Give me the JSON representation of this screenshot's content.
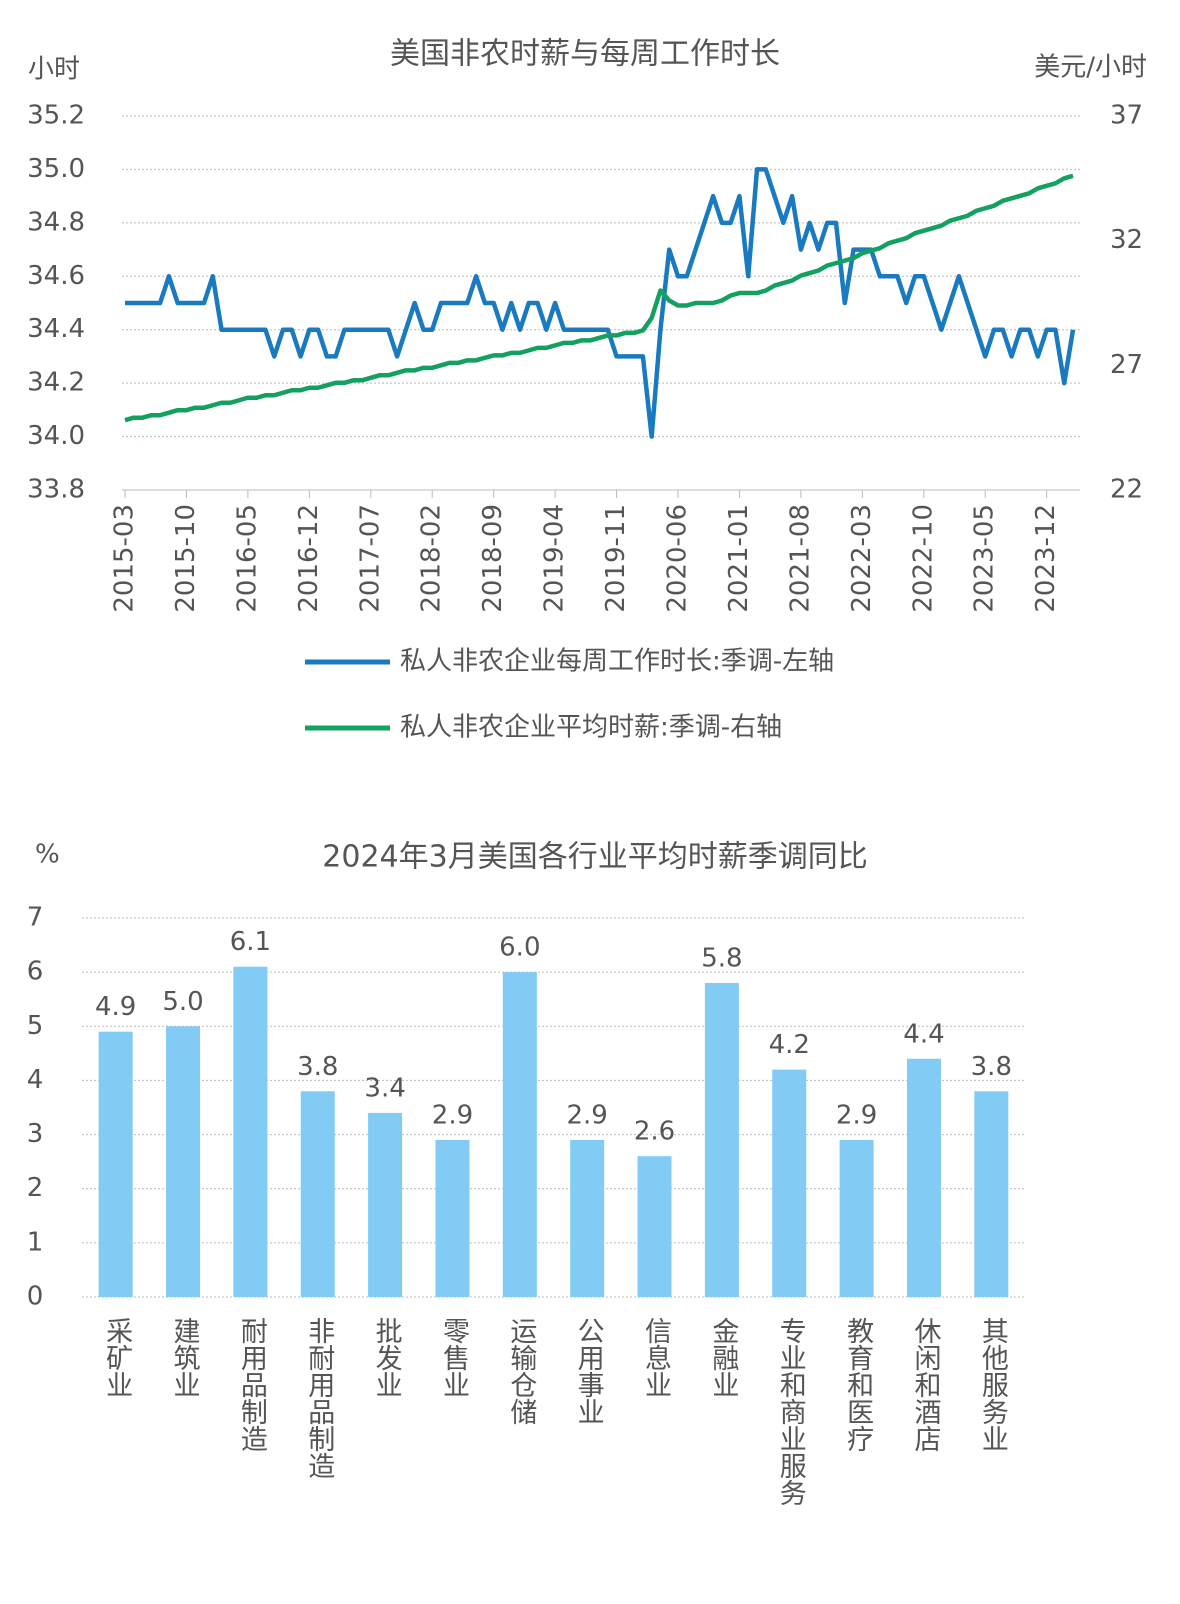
{
  "chart_data": [
    {
      "type": "line",
      "title": "美国非农时薪与每周工作时长",
      "y_label": "小时",
      "y2_label": "美元/小时",
      "categories": [
        "2015-03",
        null,
        null,
        null,
        null,
        null,
        null,
        "2015-10",
        null,
        null,
        null,
        null,
        null,
        null,
        "2016-05",
        null,
        null,
        null,
        null,
        null,
        null,
        "2016-12",
        null,
        null,
        null,
        null,
        null,
        null,
        "2017-07",
        null,
        null,
        null,
        null,
        null,
        null,
        "2018-02",
        null,
        null,
        null,
        null,
        null,
        null,
        "2018-09",
        null,
        null,
        null,
        null,
        null,
        null,
        "2019-04",
        null,
        null,
        null,
        null,
        null,
        null,
        "2019-11",
        null,
        null,
        null,
        null,
        null,
        null,
        "2020-06",
        null,
        null,
        null,
        null,
        null,
        null,
        "2021-01",
        null,
        null,
        null,
        null,
        null,
        null,
        "2021-08",
        null,
        null,
        null,
        null,
        null,
        null,
        "2022-03",
        null,
        null,
        null,
        null,
        null,
        null,
        "2022-10",
        null,
        null,
        null,
        null,
        null,
        null,
        "2023-05",
        null,
        null,
        null,
        null,
        null,
        null,
        "2023-12",
        null,
        null,
        null
      ],
      "series": [
        {
          "name": "私人非农企业每周工作时长:季调-左轴",
          "color": "#1a7abf",
          "axis": "y",
          "values": [
            34.5,
            34.5,
            34.5,
            34.5,
            34.5,
            34.6,
            34.5,
            34.5,
            34.5,
            34.5,
            34.6,
            34.4,
            34.4,
            34.4,
            34.4,
            34.4,
            34.4,
            34.3,
            34.4,
            34.4,
            34.3,
            34.4,
            34.4,
            34.3,
            34.3,
            34.4,
            34.4,
            34.4,
            34.4,
            34.4,
            34.4,
            34.3,
            34.4,
            34.5,
            34.4,
            34.4,
            34.5,
            34.5,
            34.5,
            34.5,
            34.6,
            34.5,
            34.5,
            34.4,
            34.5,
            34.4,
            34.5,
            34.5,
            34.4,
            34.5,
            34.4,
            34.4,
            34.4,
            34.4,
            34.4,
            34.4,
            34.3,
            34.3,
            34.3,
            34.3,
            34.0,
            34.4,
            34.7,
            34.6,
            34.6,
            34.7,
            34.8,
            34.9,
            34.8,
            34.8,
            34.9,
            34.6,
            35.0,
            35.0,
            34.9,
            34.8,
            34.9,
            34.7,
            34.8,
            34.7,
            34.8,
            34.8,
            34.5,
            34.7,
            34.7,
            34.7,
            34.6,
            34.6,
            34.6,
            34.5,
            34.6,
            34.6,
            34.5,
            34.4,
            34.5,
            34.6,
            34.5,
            34.4,
            34.3,
            34.4,
            34.4,
            34.3,
            34.4,
            34.4,
            34.3,
            34.4,
            34.4,
            34.2,
            34.4
          ]
        },
        {
          "name": "私人非农企业平均时薪:季调-右轴",
          "color": "#14a060",
          "axis": "y2",
          "values": [
            24.8,
            24.9,
            24.9,
            25.0,
            25.0,
            25.1,
            25.2,
            25.2,
            25.3,
            25.3,
            25.4,
            25.5,
            25.5,
            25.6,
            25.7,
            25.7,
            25.8,
            25.8,
            25.9,
            26.0,
            26.0,
            26.1,
            26.1,
            26.2,
            26.3,
            26.3,
            26.4,
            26.4,
            26.5,
            26.6,
            26.6,
            26.7,
            26.8,
            26.8,
            26.9,
            26.9,
            27.0,
            27.1,
            27.1,
            27.2,
            27.2,
            27.3,
            27.4,
            27.4,
            27.5,
            27.5,
            27.6,
            27.7,
            27.7,
            27.8,
            27.9,
            27.9,
            28.0,
            28.0,
            28.1,
            28.2,
            28.2,
            28.3,
            28.3,
            28.4,
            28.9,
            30.0,
            29.6,
            29.4,
            29.4,
            29.5,
            29.5,
            29.5,
            29.6,
            29.8,
            29.9,
            29.9,
            29.9,
            30.0,
            30.2,
            30.3,
            30.4,
            30.6,
            30.7,
            30.8,
            31.0,
            31.1,
            31.2,
            31.3,
            31.5,
            31.6,
            31.7,
            31.9,
            32.0,
            32.1,
            32.3,
            32.4,
            32.5,
            32.6,
            32.8,
            32.9,
            33.0,
            33.2,
            33.3,
            33.4,
            33.6,
            33.7,
            33.8,
            33.9,
            34.1,
            34.2,
            34.3,
            34.5,
            34.6
          ]
        }
      ],
      "ylim": [
        33.8,
        35.2
      ],
      "yticks": [
        33.8,
        {
          "value": 34,
          "label": "34.0"
        },
        34.2,
        34.4,
        34.6,
        34.8,
        {
          "value": 35,
          "label": "35.0"
        },
        35.2
      ],
      "y2lim": [
        22,
        37
      ],
      "y2ticks": [
        22,
        27,
        32,
        37
      ],
      "grid": true,
      "legend": "bottom"
    },
    {
      "type": "bar",
      "title": "2024年3月美国各行业平均时薪季调同比",
      "y_label": "%",
      "categories": [
        "采矿业",
        "建筑业",
        "耐用品制造",
        "非耐用品制造",
        "批发业",
        "零售业",
        "运输仓储",
        "公用事业",
        "信息业",
        "金融业",
        "专业和商业服务",
        "教育和医疗",
        "休闲和酒店",
        "其他服务业"
      ],
      "values": [
        4.9,
        5.0,
        6.1,
        3.8,
        3.4,
        2.9,
        6.0,
        2.9,
        2.6,
        5.8,
        4.2,
        2.9,
        4.4,
        3.8
      ],
      "value_labels": [
        "4.9",
        "5.0",
        "6.1",
        "3.8",
        "3.4",
        "2.9",
        "6.0",
        "2.9",
        "2.6",
        "5.8",
        "4.2",
        "2.9",
        "4.4",
        "3.8"
      ],
      "color": "#82cbf5",
      "ylim": [
        0,
        7
      ],
      "yticks": [
        0,
        1,
        2,
        3,
        4,
        5,
        6,
        7
      ],
      "grid": true
    }
  ]
}
